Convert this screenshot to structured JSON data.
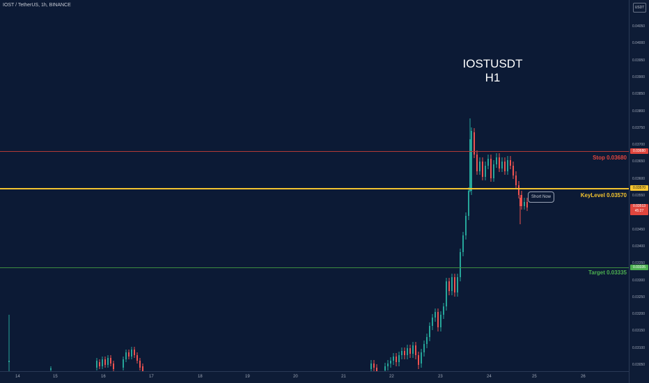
{
  "symbol_title": "IOST / TetherUS, 1h, BINANCE",
  "watermark": {
    "line1": "IOSTUSDT",
    "line2": "H1"
  },
  "currency_badge": "USDT",
  "levels": {
    "stop": {
      "label": "Stop 0.03680",
      "value": 0.0368,
      "tag": "0.03680",
      "color": "#e0463e"
    },
    "key": {
      "label": "KeyLevel 0.03570",
      "value": 0.0357,
      "tag": "0.03570",
      "color": "#f4c430"
    },
    "target": {
      "label": "Target 0.03335",
      "value": 0.03335,
      "tag": "0.03335",
      "color": "#4caf50"
    }
  },
  "current_price": {
    "price": "0.03513",
    "countdown": "45:27",
    "color": "#e0463e"
  },
  "callout": "Short Now",
  "price_ticks": [
    "0.04050",
    "0.04000",
    "0.03950",
    "0.03900",
    "0.03850",
    "0.03800",
    "0.03750",
    "0.03700",
    "0.03650",
    "0.03600",
    "0.03550",
    "0.03500",
    "0.03450",
    "0.03400",
    "0.03350",
    "0.03300",
    "0.03250",
    "0.03200",
    "0.03150",
    "0.03100",
    "0.03050"
  ],
  "time_ticks": [
    "14",
    "15",
    "16",
    "17",
    "18",
    "19",
    "20",
    "21",
    "22",
    "23",
    "24",
    "25",
    "26"
  ],
  "colors": {
    "up": "#26a69a",
    "down": "#ef5350"
  }
}
